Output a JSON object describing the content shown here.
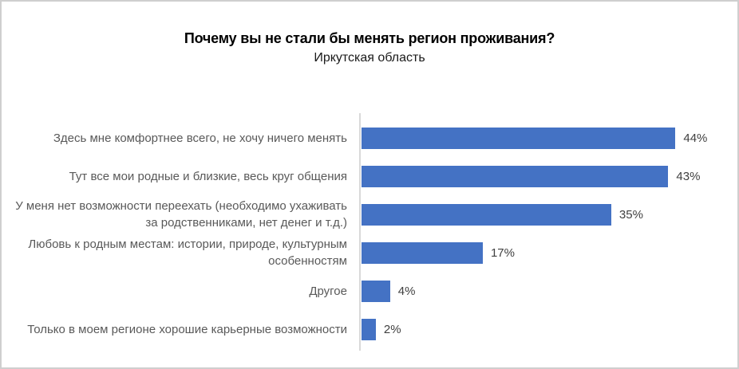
{
  "frame": {
    "background": "#ffffff",
    "border_color": "#cfcfcf"
  },
  "chart_data": {
    "type": "bar",
    "orientation": "horizontal",
    "title": "Почему вы не стали бы менять регион проживания?",
    "subtitle": "Иркутская область",
    "categories": [
      "Здесь мне комфортнее всего, не хочу ничего менять",
      "Тут все мои родные и близкие, весь круг общения",
      "У меня нет возможности переехать (необходимо ухаживать за родственниками, нет денег и т.д.)",
      "Любовь к родным местам: истории, природе, культурным особенностям",
      "Другое",
      "Только в моем регионе хорошие карьерные возможности"
    ],
    "values": [
      44,
      43,
      35,
      17,
      4,
      2
    ],
    "value_labels": [
      "44%",
      "43%",
      "35%",
      "17%",
      "4%",
      "2%"
    ],
    "xlabel": "",
    "ylabel": "",
    "xlim": [
      0,
      50
    ],
    "grid": false,
    "legend": false,
    "bar_color": "#4472c4",
    "axis_line_color": "#d9d9d9",
    "category_label_color": "#595959",
    "value_label_color": "#404040",
    "title_color": "#000000"
  }
}
